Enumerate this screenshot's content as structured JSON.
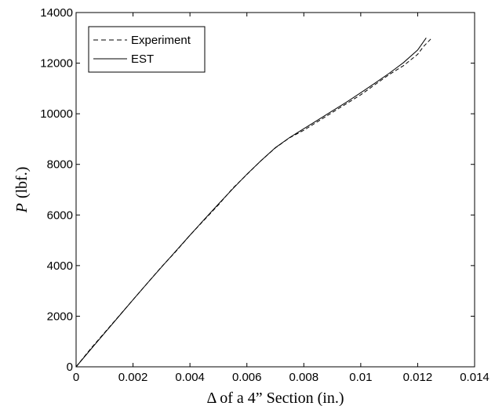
{
  "chart_data": {
    "type": "line",
    "xlabel": "Δ of a 4” Section (in.)",
    "ylabel_var": "P",
    "ylabel_unit": "(lbf.)",
    "xlim": [
      0,
      0.014
    ],
    "ylim": [
      0,
      14000
    ],
    "xticks": [
      0,
      0.002,
      0.004,
      0.006,
      0.008,
      0.01,
      0.012,
      0.014
    ],
    "xtick_labels": [
      "0",
      "0.002",
      "0.004",
      "0.006",
      "0.008",
      "0.01",
      "0.012",
      "0.014"
    ],
    "yticks": [
      0,
      2000,
      4000,
      6000,
      8000,
      10000,
      12000,
      14000
    ],
    "ytick_labels": [
      "0",
      "2000",
      "4000",
      "6000",
      "8000",
      "10000",
      "12000",
      "14000"
    ],
    "grid": false,
    "legend_position": "top-left",
    "series": [
      {
        "name": "Experiment",
        "style": "dashed",
        "color": "#000000",
        "x": [
          0,
          0.0005,
          0.001,
          0.0015,
          0.002,
          0.0025,
          0.003,
          0.0035,
          0.004,
          0.0045,
          0.005,
          0.0055,
          0.006,
          0.0065,
          0.007,
          0.0075,
          0.008,
          0.0085,
          0.009,
          0.0095,
          0.01,
          0.0105,
          0.011,
          0.0115,
          0.012,
          0.0122,
          0.0125
        ],
        "y": [
          0,
          700,
          1350,
          2000,
          2650,
          3300,
          3950,
          4550,
          5200,
          5800,
          6400,
          7050,
          7600,
          8150,
          8650,
          9050,
          9350,
          9700,
          10050,
          10400,
          10750,
          11150,
          11550,
          11900,
          12350,
          12650,
          13000
        ]
      },
      {
        "name": "EST",
        "style": "solid",
        "color": "#000000",
        "x": [
          0,
          0.0005,
          0.001,
          0.0015,
          0.002,
          0.0025,
          0.003,
          0.0035,
          0.004,
          0.0045,
          0.005,
          0.0055,
          0.006,
          0.0065,
          0.007,
          0.0075,
          0.008,
          0.0085,
          0.009,
          0.0095,
          0.01,
          0.0105,
          0.011,
          0.0115,
          0.012,
          0.0123
        ],
        "y": [
          0,
          670,
          1330,
          1990,
          2650,
          3300,
          3940,
          4570,
          5200,
          5820,
          6430,
          7030,
          7610,
          8150,
          8660,
          9060,
          9410,
          9760,
          10110,
          10460,
          10830,
          11210,
          11600,
          12020,
          12520,
          13000
        ]
      }
    ]
  }
}
